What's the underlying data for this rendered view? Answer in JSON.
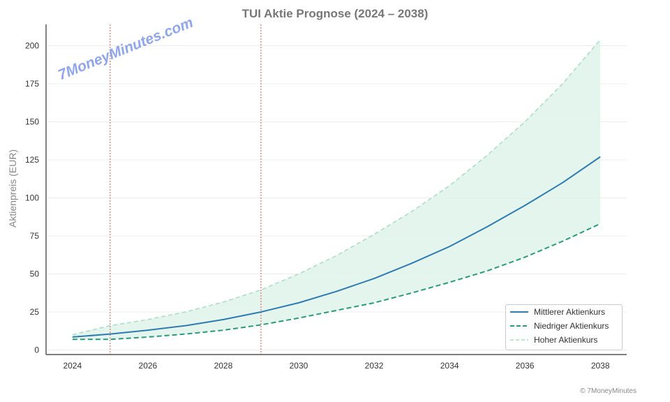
{
  "chart_data": {
    "type": "line",
    "title": "TUI Aktie Prognose (2024 – 2038)",
    "xlabel": "",
    "ylabel": "Aktienpreis (EUR)",
    "x": [
      2024,
      2025,
      2026,
      2027,
      2028,
      2029,
      2030,
      2031,
      2032,
      2033,
      2034,
      2035,
      2036,
      2037,
      2038
    ],
    "xticks": [
      "2024",
      "2026",
      "2028",
      "2030",
      "2032",
      "2034",
      "2036",
      "2038"
    ],
    "yticks": [
      "0",
      "25",
      "50",
      "75",
      "100",
      "125",
      "150",
      "175",
      "200"
    ],
    "xlim": [
      2023.3,
      2038.7
    ],
    "ylim": [
      -3,
      214
    ],
    "grid": "horizontal",
    "legend_position": "bottom-right",
    "vertical_markers": [
      2025,
      2029
    ],
    "series": [
      {
        "name": "Mittlerer Aktienkurs",
        "style": "solid",
        "color": "#2f7bb0",
        "values": [
          8.5,
          10.5,
          13,
          16,
          20,
          25,
          31,
          38.5,
          47,
          57,
          68,
          81,
          95,
          110,
          127
        ]
      },
      {
        "name": "Niedriger Aktienkurs",
        "style": "dashed",
        "color": "#2a9a7a",
        "values": [
          7,
          7,
          8.5,
          10.5,
          13,
          16.5,
          21,
          26,
          31,
          37.5,
          44.5,
          52,
          61,
          71.5,
          83
        ]
      },
      {
        "name": "Hoher Aktienkurs",
        "style": "dashed-light",
        "color": "#a8dcc4",
        "values": [
          10,
          16,
          20,
          25,
          31.5,
          39.5,
          50,
          62,
          76,
          91,
          108,
          128,
          150,
          175,
          204
        ]
      }
    ],
    "fill_color": "#dff3ea",
    "marker_color": "#d9534f"
  },
  "watermark": "7MoneyMinutes.com",
  "copyright": "© 7MoneyMinutes"
}
